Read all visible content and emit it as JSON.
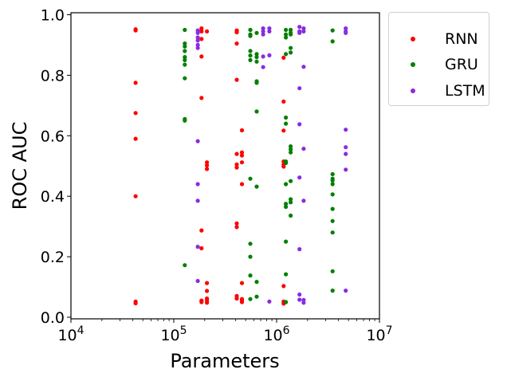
{
  "chart_data": {
    "type": "scatter",
    "title": "",
    "xlabel": "Parameters",
    "ylabel": "ROC AUC",
    "xscale": "log",
    "xlim": [
      10000,
      10000000
    ],
    "ylim": [
      0.0,
      1.0
    ],
    "x_ticks": [
      "10^4",
      "10^5",
      "10^6",
      "10^7"
    ],
    "y_ticks": [
      "0.0",
      "0.2",
      "0.4",
      "0.6",
      "0.8",
      "1.0"
    ],
    "grid": false,
    "legend_position": "upper right, outside plot",
    "series": [
      {
        "name": "RNN",
        "color": "#ff0000",
        "points": [
          [
            42500,
            0.952
          ],
          [
            42500,
            0.948
          ],
          [
            42500,
            0.775
          ],
          [
            42500,
            0.675
          ],
          [
            42500,
            0.59
          ],
          [
            42500,
            0.4
          ],
          [
            42500,
            0.052
          ],
          [
            42500,
            0.046
          ],
          [
            186000,
            0.955
          ],
          [
            186000,
            0.945
          ],
          [
            186000,
            0.92
          ],
          [
            186000,
            0.862
          ],
          [
            186000,
            0.725
          ],
          [
            186000,
            0.287
          ],
          [
            186000,
            0.228
          ],
          [
            186000,
            0.055
          ],
          [
            186000,
            0.05
          ],
          [
            210000,
            0.945
          ],
          [
            210000,
            0.512
          ],
          [
            210000,
            0.502
          ],
          [
            210000,
            0.49
          ],
          [
            210000,
            0.113
          ],
          [
            210000,
            0.087
          ],
          [
            210000,
            0.062
          ],
          [
            210000,
            0.055
          ],
          [
            210000,
            0.048
          ],
          [
            410000,
            0.948
          ],
          [
            410000,
            0.942
          ],
          [
            410000,
            0.905
          ],
          [
            410000,
            0.785
          ],
          [
            410000,
            0.54
          ],
          [
            410000,
            0.505
          ],
          [
            410000,
            0.495
          ],
          [
            410000,
            0.31
          ],
          [
            410000,
            0.298
          ],
          [
            410000,
            0.07
          ],
          [
            410000,
            0.062
          ],
          [
            460000,
            0.618
          ],
          [
            460000,
            0.545
          ],
          [
            460000,
            0.535
          ],
          [
            460000,
            0.512
          ],
          [
            460000,
            0.44
          ],
          [
            460000,
            0.113
          ],
          [
            460000,
            0.06
          ],
          [
            460000,
            0.055
          ],
          [
            460000,
            0.05
          ],
          [
            1170000,
            0.858
          ],
          [
            1170000,
            0.713
          ],
          [
            1170000,
            0.617
          ],
          [
            1170000,
            0.515
          ],
          [
            1170000,
            0.505
          ],
          [
            1170000,
            0.498
          ],
          [
            1170000,
            0.103
          ],
          [
            1170000,
            0.052
          ],
          [
            1170000,
            0.045
          ]
        ]
      },
      {
        "name": "GRU",
        "color": "#008000",
        "points": [
          [
            128000,
            0.95
          ],
          [
            128000,
            0.905
          ],
          [
            128000,
            0.895
          ],
          [
            128000,
            0.88
          ],
          [
            128000,
            0.86
          ],
          [
            128000,
            0.85
          ],
          [
            128000,
            0.835
          ],
          [
            128000,
            0.79
          ],
          [
            128000,
            0.655
          ],
          [
            128000,
            0.65
          ],
          [
            128000,
            0.172
          ],
          [
            555000,
            0.95
          ],
          [
            555000,
            0.935
          ],
          [
            555000,
            0.93
          ],
          [
            555000,
            0.88
          ],
          [
            555000,
            0.865
          ],
          [
            555000,
            0.85
          ],
          [
            555000,
            0.458
          ],
          [
            555000,
            0.243
          ],
          [
            555000,
            0.2
          ],
          [
            555000,
            0.138
          ],
          [
            555000,
            0.06
          ],
          [
            640000,
            0.94
          ],
          [
            640000,
            0.87
          ],
          [
            640000,
            0.86
          ],
          [
            640000,
            0.845
          ],
          [
            640000,
            0.78
          ],
          [
            640000,
            0.775
          ],
          [
            640000,
            0.68
          ],
          [
            640000,
            0.432
          ],
          [
            640000,
            0.117
          ],
          [
            640000,
            0.068
          ],
          [
            1230000,
            0.95
          ],
          [
            1230000,
            0.935
          ],
          [
            1230000,
            0.925
          ],
          [
            1230000,
            0.87
          ],
          [
            1230000,
            0.66
          ],
          [
            1230000,
            0.64
          ],
          [
            1230000,
            0.515
          ],
          [
            1230000,
            0.51
          ],
          [
            1230000,
            0.44
          ],
          [
            1230000,
            0.375
          ],
          [
            1230000,
            0.365
          ],
          [
            1230000,
            0.25
          ],
          [
            1230000,
            0.142
          ],
          [
            1230000,
            0.05
          ],
          [
            1370000,
            0.95
          ],
          [
            1370000,
            0.94
          ],
          [
            1370000,
            0.935
          ],
          [
            1370000,
            0.89
          ],
          [
            1370000,
            0.875
          ],
          [
            1370000,
            0.565
          ],
          [
            1370000,
            0.555
          ],
          [
            1370000,
            0.545
          ],
          [
            1370000,
            0.45
          ],
          [
            1370000,
            0.39
          ],
          [
            1370000,
            0.38
          ],
          [
            1370000,
            0.336
          ],
          [
            3500000,
            0.948
          ],
          [
            3500000,
            0.912
          ],
          [
            3500000,
            0.473
          ],
          [
            3500000,
            0.458
          ],
          [
            3500000,
            0.452
          ],
          [
            3500000,
            0.44
          ],
          [
            3500000,
            0.406
          ],
          [
            3500000,
            0.358
          ],
          [
            3500000,
            0.318
          ],
          [
            3500000,
            0.28
          ],
          [
            3500000,
            0.152
          ],
          [
            3500000,
            0.088
          ]
        ]
      },
      {
        "name": "LSTM",
        "color": "#8a2be2",
        "points": [
          [
            171000,
            0.948
          ],
          [
            171000,
            0.94
          ],
          [
            171000,
            0.925
          ],
          [
            171000,
            0.915
          ],
          [
            171000,
            0.9
          ],
          [
            171000,
            0.89
          ],
          [
            171000,
            0.582
          ],
          [
            171000,
            0.44
          ],
          [
            171000,
            0.385
          ],
          [
            171000,
            0.233
          ],
          [
            171000,
            0.12
          ],
          [
            740000,
            0.955
          ],
          [
            740000,
            0.945
          ],
          [
            740000,
            0.935
          ],
          [
            740000,
            0.862
          ],
          [
            740000,
            0.827
          ],
          [
            850000,
            0.955
          ],
          [
            850000,
            0.945
          ],
          [
            850000,
            0.866
          ],
          [
            850000,
            0.052
          ],
          [
            1670000,
            0.96
          ],
          [
            1670000,
            0.945
          ],
          [
            1670000,
            0.94
          ],
          [
            1670000,
            0.757
          ],
          [
            1670000,
            0.638
          ],
          [
            1670000,
            0.462
          ],
          [
            1670000,
            0.225
          ],
          [
            1670000,
            0.075
          ],
          [
            1670000,
            0.058
          ],
          [
            1830000,
            0.955
          ],
          [
            1830000,
            0.945
          ],
          [
            1830000,
            0.828
          ],
          [
            1830000,
            0.557
          ],
          [
            1830000,
            0.385
          ],
          [
            1830000,
            0.057
          ],
          [
            1830000,
            0.048
          ],
          [
            4700000,
            0.955
          ],
          [
            4700000,
            0.945
          ],
          [
            4700000,
            0.94
          ],
          [
            4700000,
            0.62
          ],
          [
            4700000,
            0.562
          ],
          [
            4700000,
            0.54
          ],
          [
            4700000,
            0.488
          ],
          [
            4700000,
            0.088
          ]
        ]
      }
    ]
  },
  "legend": {
    "items": [
      {
        "label": "RNN",
        "color": "#ff0000"
      },
      {
        "label": "GRU",
        "color": "#008000"
      },
      {
        "label": "LSTM",
        "color": "#8a2be2"
      }
    ]
  },
  "axes": {
    "xlabel": "Parameters",
    "ylabel": "ROC AUC",
    "yticks": [
      "0.0",
      "0.2",
      "0.4",
      "0.6",
      "0.8",
      "1.0"
    ],
    "xticks": [
      {
        "base": "10",
        "exp": "4"
      },
      {
        "base": "10",
        "exp": "5"
      },
      {
        "base": "10",
        "exp": "6"
      },
      {
        "base": "10",
        "exp": "7"
      }
    ]
  }
}
